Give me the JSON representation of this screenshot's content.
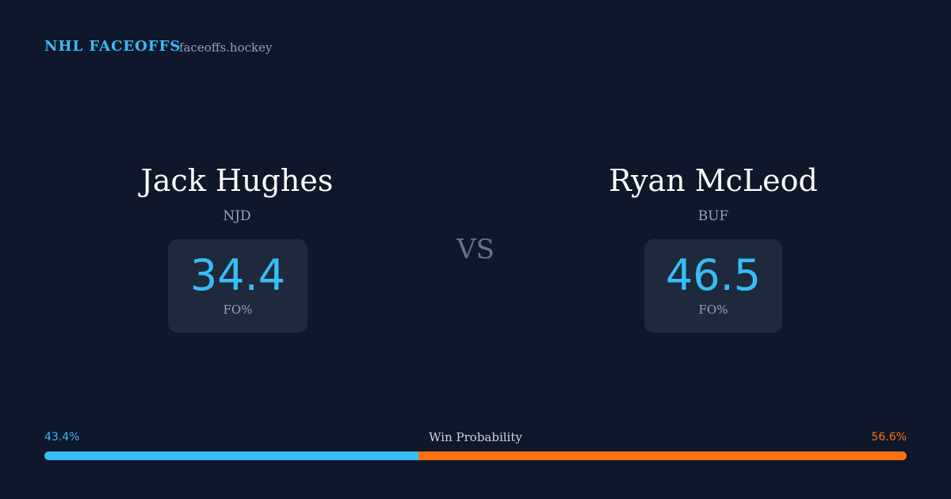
{
  "header": {
    "brand": "NHL FACEOFFS",
    "site": "faceoffs.hockey"
  },
  "players": [
    {
      "name": "Jack Hughes",
      "team": "NJD",
      "stat_value": 34.4,
      "stat_label": "FO%"
    },
    {
      "name": "Ryan McLeod",
      "team": "BUF",
      "stat_value": 46.5,
      "stat_label": "FO%"
    }
  ],
  "versus": "VS",
  "win_probability": {
    "title": "Win Probability",
    "left": {
      "value": 43.4,
      "label": "43.4%",
      "color": "#38bdf8"
    },
    "right": {
      "value": 56.6,
      "label": "56.6%",
      "color": "#f97316"
    }
  }
}
